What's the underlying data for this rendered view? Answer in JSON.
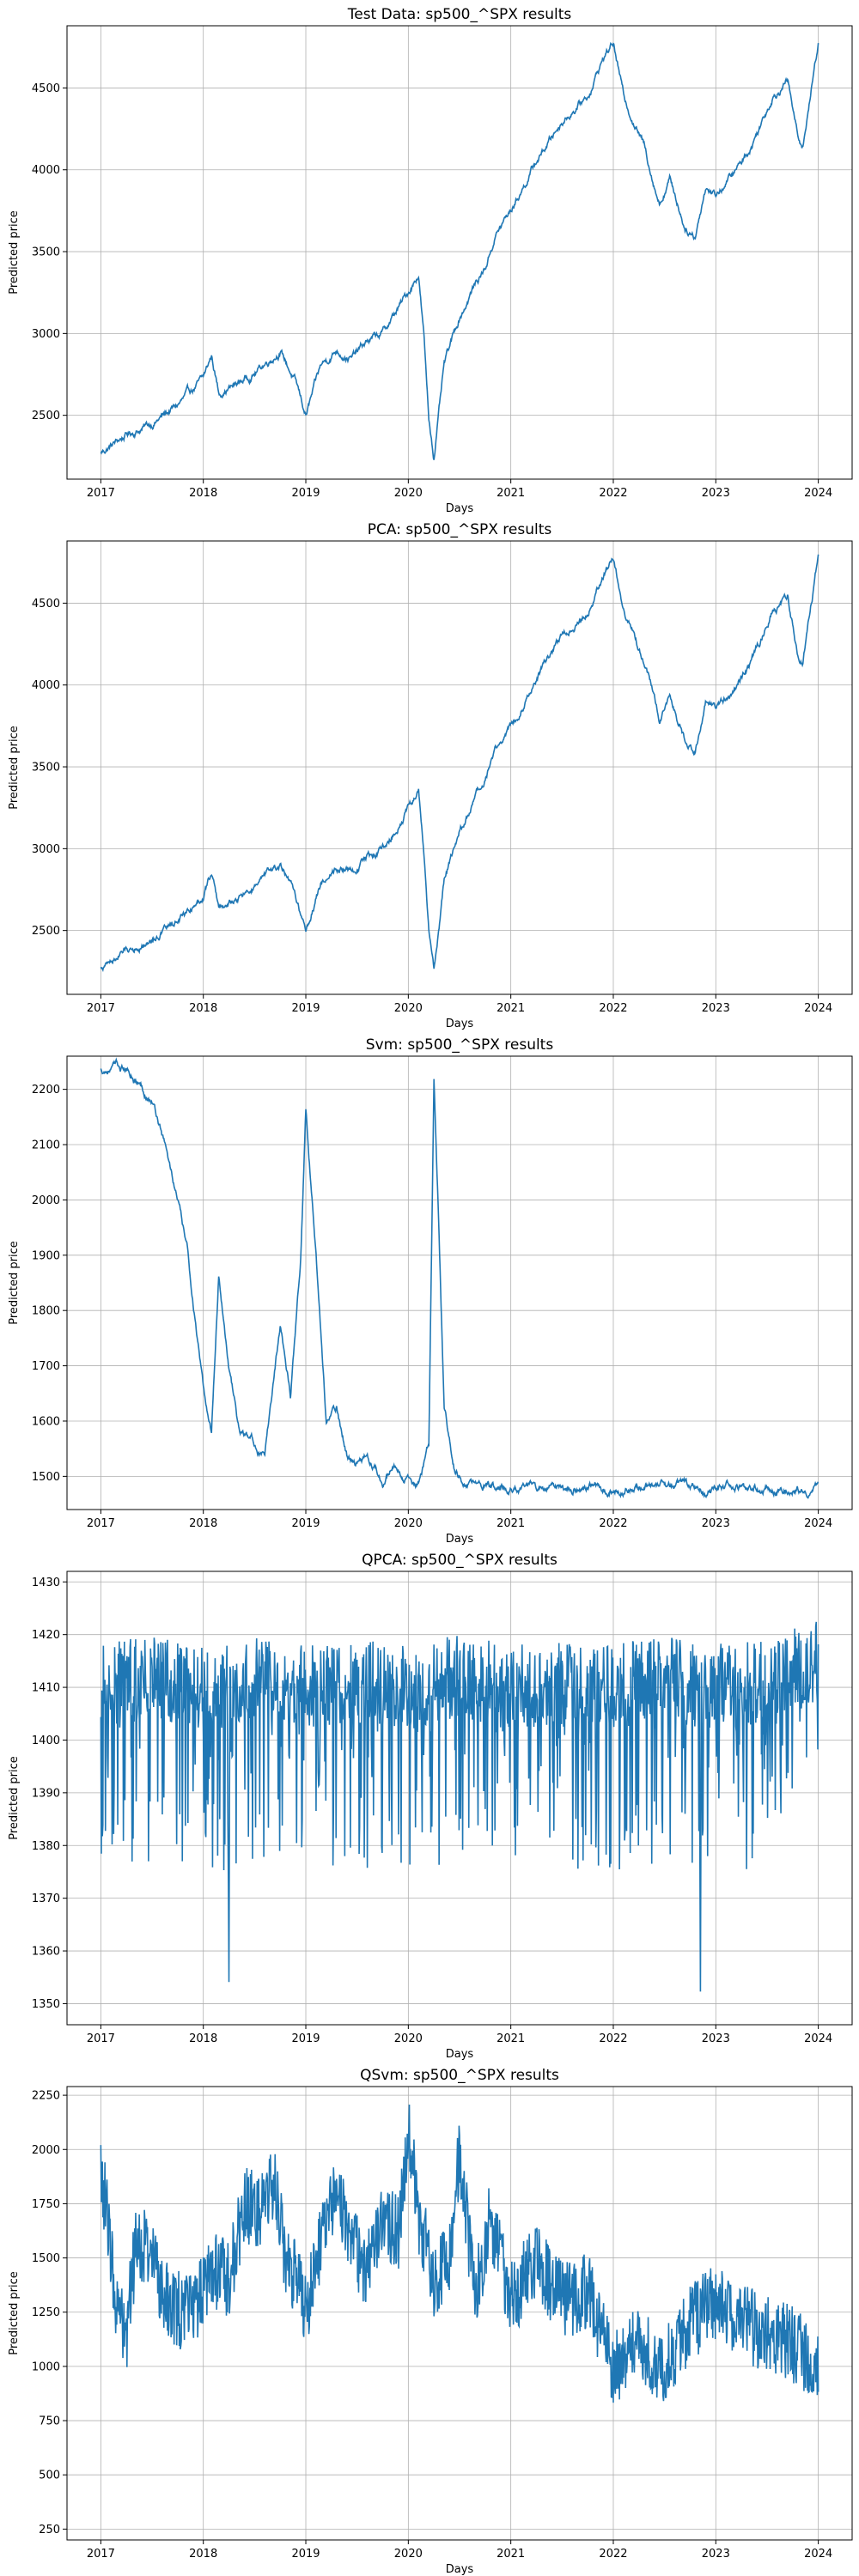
{
  "figure": {
    "line_color": "#1f77b4",
    "grid": true
  },
  "chart_data": [
    {
      "type": "line",
      "title": "Test Data: sp500_^SPX results",
      "xlabel": "Days",
      "ylabel": "Predicted price",
      "xlim": [
        2016.67,
        2024.33
      ],
      "ylim": [
        2110,
        4880
      ],
      "xticks": [
        2017,
        2018,
        2019,
        2020,
        2021,
        2022,
        2023,
        2024
      ],
      "yticks": [
        2500,
        3000,
        3500,
        4000,
        4500
      ],
      "noise": 30,
      "x": [
        2017.0,
        2017.25,
        2017.5,
        2017.75,
        2018.0,
        2018.08,
        2018.15,
        2018.3,
        2018.5,
        2018.75,
        2018.9,
        2019.0,
        2019.15,
        2019.3,
        2019.45,
        2019.6,
        2019.75,
        2019.9,
        2020.0,
        2020.1,
        2020.15,
        2020.2,
        2020.25,
        2020.35,
        2020.5,
        2020.65,
        2020.75,
        2020.85,
        2021.0,
        2021.25,
        2021.5,
        2021.75,
        2021.9,
        2022.0,
        2022.1,
        2022.2,
        2022.3,
        2022.45,
        2022.55,
        2022.7,
        2022.8,
        2022.9,
        2023.0,
        2023.2,
        2023.35,
        2023.55,
        2023.7,
        2023.8,
        2023.85,
        2024.0
      ],
      "y": [
        2270,
        2380,
        2450,
        2560,
        2720,
        2860,
        2640,
        2680,
        2760,
        2900,
        2700,
        2500,
        2800,
        2900,
        2850,
        2950,
        3000,
        3150,
        3250,
        3370,
        3000,
        2480,
        2250,
        2800,
        3100,
        3300,
        3400,
        3600,
        3750,
        4050,
        4300,
        4450,
        4680,
        4780,
        4450,
        4300,
        4150,
        3800,
        3950,
        3650,
        3600,
        3900,
        3850,
        4000,
        4150,
        4450,
        4550,
        4200,
        4150,
        4780
      ]
    },
    {
      "type": "line",
      "title": "PCA: sp500_^SPX results",
      "xlabel": "Days",
      "ylabel": "Predicted price",
      "xlim": [
        2016.67,
        2024.33
      ],
      "ylim": [
        2110,
        4880
      ],
      "xticks": [
        2017,
        2018,
        2019,
        2020,
        2021,
        2022,
        2023,
        2024
      ],
      "yticks": [
        2500,
        3000,
        3500,
        4000,
        4500
      ],
      "noise": 30,
      "x": [
        2017.0,
        2017.25,
        2017.5,
        2017.75,
        2018.0,
        2018.08,
        2018.15,
        2018.3,
        2018.5,
        2018.75,
        2018.9,
        2019.0,
        2019.15,
        2019.3,
        2019.45,
        2019.6,
        2019.75,
        2019.9,
        2020.0,
        2020.1,
        2020.15,
        2020.2,
        2020.25,
        2020.35,
        2020.5,
        2020.65,
        2020.75,
        2020.85,
        2021.0,
        2021.25,
        2021.5,
        2021.75,
        2021.9,
        2022.0,
        2022.1,
        2022.2,
        2022.3,
        2022.45,
        2022.55,
        2022.7,
        2022.8,
        2022.9,
        2023.0,
        2023.2,
        2023.35,
        2023.55,
        2023.7,
        2023.8,
        2023.85,
        2024.0
      ],
      "y": [
        2270,
        2380,
        2450,
        2560,
        2720,
        2860,
        2640,
        2680,
        2760,
        2900,
        2700,
        2500,
        2800,
        2900,
        2850,
        2950,
        3000,
        3150,
        3250,
        3370,
        3000,
        2480,
        2250,
        2800,
        3100,
        3300,
        3400,
        3600,
        3750,
        4050,
        4300,
        4450,
        4680,
        4780,
        4450,
        4300,
        4150,
        3800,
        3950,
        3650,
        3600,
        3900,
        3850,
        4000,
        4150,
        4450,
        4550,
        4200,
        4150,
        4780
      ]
    },
    {
      "type": "line",
      "title": "Svm: sp500_^SPX results",
      "xlabel": "Days",
      "ylabel": "Predicted price",
      "xlim": [
        2016.67,
        2024.33
      ],
      "ylim": [
        1440,
        2260
      ],
      "xticks": [
        2017,
        2018,
        2019,
        2020,
        2021,
        2022,
        2023,
        2024
      ],
      "yticks": [
        1500,
        1600,
        1700,
        1800,
        1900,
        2000,
        2100,
        2200
      ],
      "noise": 10,
      "x": [
        2017.0,
        2017.15,
        2017.3,
        2017.5,
        2017.6,
        2017.75,
        2017.85,
        2018.0,
        2018.08,
        2018.15,
        2018.25,
        2018.35,
        2018.5,
        2018.6,
        2018.75,
        2018.85,
        2018.95,
        2019.0,
        2019.1,
        2019.2,
        2019.3,
        2019.4,
        2019.5,
        2019.6,
        2019.75,
        2019.85,
        2020.0,
        2020.1,
        2020.2,
        2020.25,
        2020.3,
        2020.35,
        2020.45,
        2020.55,
        2020.7,
        2021.0,
        2022.0,
        2023.0,
        2024.0
      ],
      "y": [
        2235,
        2240,
        2230,
        2180,
        2120,
        2000,
        1900,
        1650,
        1580,
        1870,
        1700,
        1580,
        1560,
        1530,
        1780,
        1650,
        1900,
        2165,
        1900,
        1600,
        1620,
        1540,
        1520,
        1540,
        1500,
        1520,
        1490,
        1485,
        1550,
        2220,
        1950,
        1620,
        1520,
        1485,
        1480,
        1480,
        1480,
        1480,
        1480
      ]
    },
    {
      "type": "line",
      "title": "QPCA: sp500_^SPX results",
      "xlabel": "Days",
      "ylabel": "Predicted price",
      "xlim": [
        2016.67,
        2024.33
      ],
      "ylim": [
        1346,
        1432
      ],
      "xticks": [
        2017,
        2018,
        2019,
        2020,
        2021,
        2022,
        2023,
        2024
      ],
      "yticks": [
        1350,
        1360,
        1370,
        1380,
        1390,
        1400,
        1410,
        1420,
        1430
      ],
      "noise": 16,
      "x": [
        2017.0,
        2017.5,
        2018.0,
        2018.24,
        2018.25,
        2018.26,
        2018.5,
        2019.0,
        2019.5,
        2020.0,
        2020.5,
        2021.0,
        2021.5,
        2022.0,
        2022.5,
        2022.84,
        2022.85,
        2022.86,
        2023.5,
        2024.0
      ],
      "y": [
        1410,
        1412,
        1410,
        1410,
        1355,
        1410,
        1412,
        1410,
        1411,
        1410,
        1412,
        1410,
        1411,
        1410,
        1412,
        1410,
        1350,
        1410,
        1411,
        1415
      ]
    },
    {
      "type": "line",
      "title": "QSvm: sp500_^SPX results",
      "xlabel": "Days",
      "ylabel": "Predicted price",
      "xlim": [
        2016.67,
        2024.33
      ],
      "ylim": [
        200,
        2290
      ],
      "xticks": [
        2017,
        2018,
        2019,
        2020,
        2021,
        2022,
        2023,
        2024
      ],
      "yticks": [
        250,
        500,
        750,
        1000,
        1250,
        1500,
        1750,
        2000,
        2250
      ],
      "noise": 180,
      "x": [
        2017.0,
        2017.05,
        2017.15,
        2017.25,
        2017.35,
        2017.5,
        2017.65,
        2017.8,
        2017.95,
        2018.1,
        2018.25,
        2018.4,
        2018.55,
        2018.7,
        2018.8,
        2018.9,
        2019.0,
        2019.15,
        2019.3,
        2019.45,
        2019.6,
        2019.75,
        2019.9,
        2020.0,
        2020.1,
        2020.25,
        2020.4,
        2020.5,
        2020.65,
        2020.8,
        2021.0,
        2021.25,
        2021.5,
        2021.75,
        2022.0,
        2022.25,
        2022.5,
        2022.75,
        2023.0,
        2023.25,
        2023.5,
        2023.75,
        2024.0
      ],
      "y": [
        1900,
        1750,
        1300,
        1150,
        1600,
        1500,
        1300,
        1250,
        1300,
        1450,
        1400,
        1750,
        1700,
        1850,
        1500,
        1400,
        1250,
        1600,
        1800,
        1550,
        1450,
        1700,
        1600,
        2100,
        1700,
        1400,
        1500,
        2000,
        1300,
        1700,
        1300,
        1500,
        1300,
        1350,
        1000,
        1100,
        1000,
        1200,
        1300,
        1200,
        1150,
        1100,
        1000
      ]
    }
  ]
}
